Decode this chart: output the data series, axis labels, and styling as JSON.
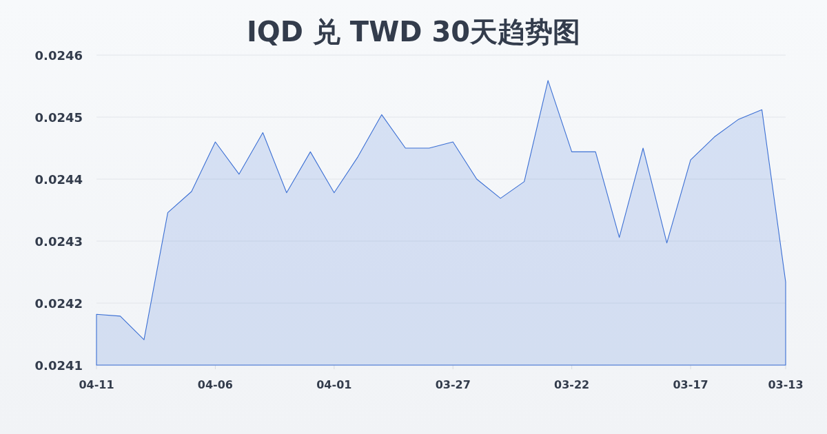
{
  "chart_data": {
    "type": "area",
    "title": "IQD 兑 TWD 30天趋势图",
    "categories": [
      "04-11",
      null,
      null,
      null,
      null,
      "04-06",
      null,
      null,
      null,
      null,
      "04-01",
      null,
      null,
      null,
      null,
      "03-27",
      null,
      null,
      null,
      null,
      "03-22",
      null,
      null,
      null,
      null,
      "03-17",
      null,
      null,
      null,
      "03-13"
    ],
    "series": [
      {
        "color": "#3b6fd4",
        "values": [
          0.024182,
          0.024179,
          0.024141,
          0.024346,
          0.02438,
          0.02446,
          0.024408,
          0.024475,
          0.024378,
          0.024444,
          0.024378,
          0.024436,
          0.024504,
          0.02445,
          0.02445,
          0.02446,
          0.0244,
          0.024369,
          0.024396,
          0.024559,
          0.024444,
          0.024444,
          0.024306,
          0.02445,
          0.024297,
          0.024431,
          0.024468,
          0.024496,
          0.024512,
          0.024234
        ]
      }
    ],
    "ylim": [
      0.0241,
      0.0246
    ],
    "yticks": [
      0.0241,
      0.0242,
      0.0243,
      0.0244,
      0.0245,
      0.0246
    ],
    "grid": "y"
  }
}
